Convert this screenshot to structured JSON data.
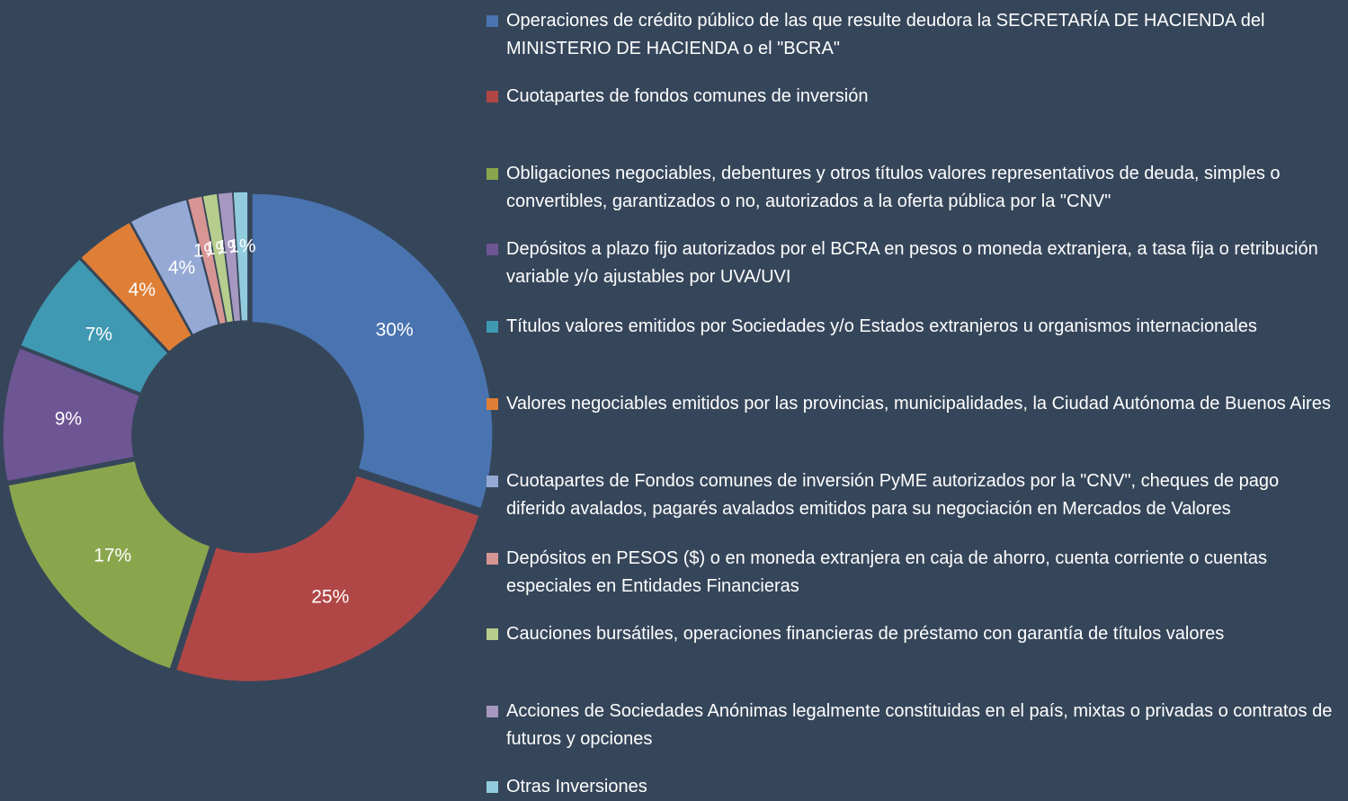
{
  "chart_data": {
    "type": "pie",
    "categories": [
      "Operaciones de crédito público de las que resulte deudora la SECRETARÍA DE HACIENDA del MINISTERIO DE HACIENDA o el \"BCRA\"",
      "Cuotapartes de fondos comunes de inversión",
      "Obligaciones negociables, debentures y otros títulos valores representativos de deuda, simples o convertibles, garantizados o no, autorizados a la oferta pública por la \"CNV\"",
      "Depósitos a plazo fijo autorizados por el BCRA en pesos o moneda extranjera, a tasa fija o retribución variable y/o ajustables por UVA/UVI",
      "Títulos valores emitidos por Sociedades y/o Estados extranjeros u organismos internacionales",
      "Valores negociables emitidos por las provincias, municipalidades, la Ciudad Autónoma de Buenos Aires",
      "Cuotapartes de Fondos comunes de inversión PyME autorizados por la \"CNV\", cheques de pago diferido avalados, pagarés avalados emitidos para su negociación en Mercados de Valores",
      "Depósitos en PESOS ($) o en moneda extranjera en caja de ahorro, cuenta corriente o cuentas especiales en Entidades Financieras",
      "Cauciones bursátiles, operaciones financieras de préstamo con garantía de títulos valores",
      "Acciones de Sociedades Anónimas legalmente constituidas en el país, mixtas o privadas o contratos de futuros y opciones",
      "Otras Inversiones"
    ],
    "values": [
      30,
      25,
      17,
      9,
      7,
      4,
      4,
      1,
      1,
      1,
      1
    ],
    "value_labels": [
      "30%",
      "25%",
      "17%",
      "9%",
      "7%",
      "4%",
      "4%",
      "1%",
      "1%",
      "1%",
      "1%"
    ],
    "colors": [
      "#4a74b0",
      "#b04746",
      "#8aa64d",
      "#6e5594",
      "#3f99b2",
      "#df7f36",
      "#95a9d5",
      "#d79593",
      "#b6cd8d",
      "#a698c0",
      "#91cbdd"
    ],
    "donut": true
  }
}
